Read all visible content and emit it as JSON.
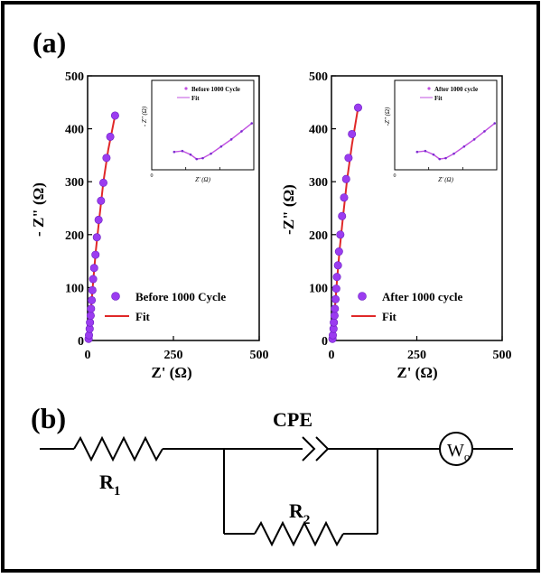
{
  "panel_labels": {
    "a": "(a)",
    "b": "(b)"
  },
  "colors": {
    "fit_line": "#e02828",
    "marker": "#9b3cf0",
    "marker_edge": "#6a1fc0",
    "inset_data": "#c050e0",
    "frame": "#000000"
  },
  "chart_data": [
    {
      "type": "scatter",
      "xlabel": "Z' (Ω)",
      "ylabel": "- Z\" (Ω)",
      "xlim": [
        0,
        500
      ],
      "ylim": [
        0,
        500
      ],
      "xticks": [
        "0",
        "250",
        "500"
      ],
      "yticks": [
        "0",
        "100",
        "200",
        "300",
        "400",
        "500"
      ],
      "legend_position": "bottom-right",
      "series": [
        {
          "name": "Before 1000 Cycle",
          "kind": "markers",
          "x": [
            3,
            4,
            6,
            7,
            9,
            10,
            12,
            14,
            16,
            19,
            23,
            27,
            32,
            39,
            46,
            55,
            66,
            80
          ],
          "y": [
            3,
            10,
            22,
            34,
            47,
            60,
            76,
            95,
            116,
            137,
            162,
            195,
            228,
            264,
            298,
            345,
            385,
            425
          ]
        },
        {
          "name": "Fit",
          "kind": "line",
          "x": [
            2,
            6,
            10,
            16,
            24,
            34,
            46,
            60,
            80
          ],
          "y": [
            0,
            25,
            60,
            110,
            170,
            230,
            300,
            360,
            425
          ]
        }
      ],
      "inset": {
        "xlabel": "Z' (Ω)",
        "ylabel": "- Z\" (Ω)",
        "xticks": [
          "0",
          "",
          "",
          ""
        ],
        "legend": [
          "Before 1000 Cycle",
          "Fit"
        ]
      }
    },
    {
      "type": "scatter",
      "xlabel": "Z' (Ω)",
      "ylabel": "-Z\" (Ω)",
      "xlim": [
        0,
        500
      ],
      "ylim": [
        0,
        500
      ],
      "xticks": [
        "0",
        "250",
        "500"
      ],
      "yticks": [
        "0",
        "100",
        "200",
        "300",
        "400",
        "500"
      ],
      "legend_position": "bottom-right",
      "series": [
        {
          "name": "After 1000 cycle",
          "kind": "markers",
          "x": [
            3,
            4,
            6,
            7,
            9,
            10,
            12,
            14,
            16,
            19,
            22,
            26,
            31,
            37,
            43,
            50,
            60,
            78
          ],
          "y": [
            3,
            10,
            22,
            34,
            47,
            60,
            78,
            98,
            120,
            142,
            168,
            200,
            235,
            270,
            305,
            345,
            390,
            440
          ]
        },
        {
          "name": "Fit",
          "kind": "line",
          "x": [
            2,
            6,
            10,
            16,
            24,
            34,
            46,
            60,
            78
          ],
          "y": [
            0,
            25,
            60,
            112,
            172,
            235,
            305,
            370,
            440
          ]
        }
      ],
      "inset": {
        "xlabel": "Z' (Ω)",
        "ylabel": "-Z\" (Ω)",
        "xticks": [
          "0",
          "",
          "",
          ""
        ],
        "legend": [
          "After 1000 cycle",
          "Fit"
        ]
      }
    }
  ],
  "circuit": {
    "r1": {
      "letter": "R",
      "sub": "1"
    },
    "cpe": "CPE",
    "r2": {
      "letter": "R",
      "sub": "2"
    },
    "w": {
      "letter": "W",
      "sub": "o"
    }
  }
}
